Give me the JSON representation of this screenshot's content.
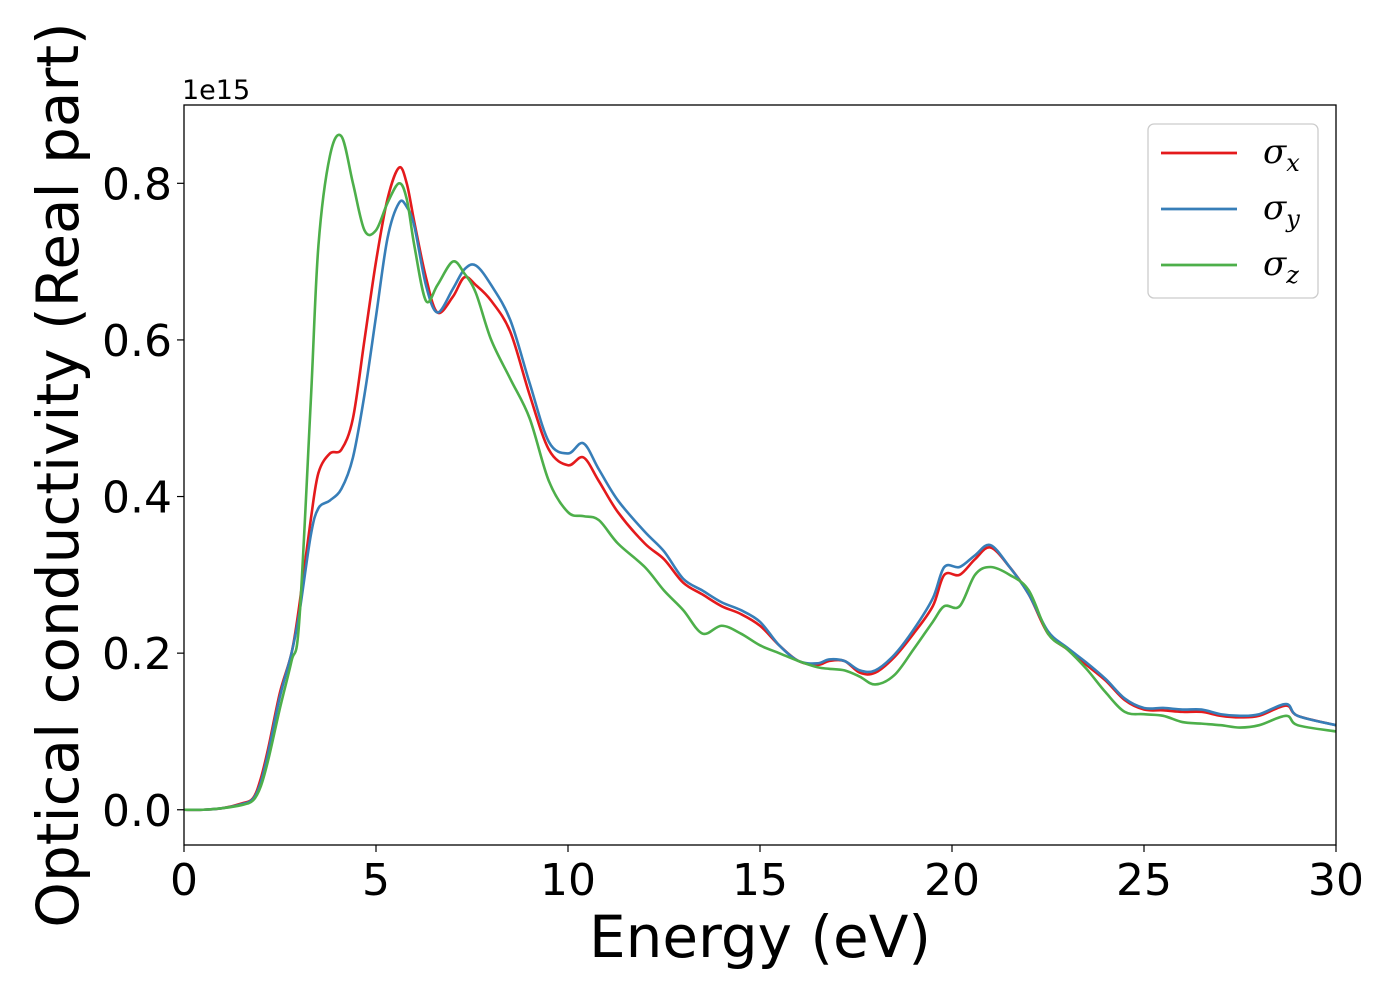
{
  "chart_data": {
    "type": "line",
    "title": "",
    "xlabel": "Energy (eV)",
    "ylabel": "Optical conductivity (Real part)",
    "y_offset_text": "1e15",
    "xlim": [
      0,
      30
    ],
    "ylim": [
      -0.045,
      0.9
    ],
    "xticks": [
      0,
      5,
      10,
      15,
      20,
      25,
      30
    ],
    "xtick_labels": [
      "0",
      "5",
      "10",
      "15",
      "20",
      "25",
      "30"
    ],
    "yticks": [
      0.0,
      0.2,
      0.4,
      0.6,
      0.8
    ],
    "ytick_labels": [
      "0.0",
      "0.2",
      "0.4",
      "0.6",
      "0.8"
    ],
    "grid": false,
    "legend_position": "top-right",
    "x": [
      0,
      0.5,
      1.0,
      1.5,
      1.8,
      2.0,
      2.2,
      2.5,
      2.8,
      3.0,
      3.3,
      3.5,
      3.8,
      4.1,
      4.4,
      4.7,
      5.0,
      5.3,
      5.6,
      5.8,
      6.0,
      6.3,
      6.6,
      7.0,
      7.3,
      7.6,
      8.0,
      8.5,
      9.0,
      9.5,
      10.0,
      10.4,
      10.8,
      11.3,
      12.0,
      12.5,
      13.0,
      13.5,
      14.0,
      14.5,
      15.0,
      15.5,
      16.0,
      16.5,
      16.8,
      17.2,
      17.6,
      18.0,
      18.5,
      19.0,
      19.5,
      19.8,
      20.2,
      20.6,
      21.0,
      21.5,
      22.0,
      22.5,
      23.0,
      23.5,
      24.0,
      24.5,
      25.0,
      25.5,
      26.0,
      26.5,
      27.0,
      27.5,
      28.0,
      28.7,
      29.0,
      30.0
    ],
    "series": [
      {
        "name": "σx",
        "color": "#e41a1c",
        "values": [
          0.0,
          0.0,
          0.002,
          0.008,
          0.015,
          0.04,
          0.08,
          0.15,
          0.2,
          0.26,
          0.37,
          0.43,
          0.455,
          0.46,
          0.5,
          0.6,
          0.7,
          0.78,
          0.82,
          0.8,
          0.75,
          0.68,
          0.635,
          0.655,
          0.68,
          0.67,
          0.65,
          0.61,
          0.53,
          0.46,
          0.44,
          0.45,
          0.42,
          0.38,
          0.34,
          0.32,
          0.29,
          0.275,
          0.26,
          0.25,
          0.235,
          0.21,
          0.19,
          0.185,
          0.19,
          0.19,
          0.175,
          0.175,
          0.195,
          0.225,
          0.26,
          0.3,
          0.3,
          0.32,
          0.335,
          0.31,
          0.275,
          0.225,
          0.205,
          0.185,
          0.165,
          0.14,
          0.128,
          0.127,
          0.125,
          0.125,
          0.12,
          0.118,
          0.12,
          0.133,
          0.12,
          0.108
        ]
      },
      {
        "name": "σy",
        "color": "#377eb8",
        "values": [
          0.0,
          0.0,
          0.002,
          0.007,
          0.014,
          0.035,
          0.075,
          0.145,
          0.2,
          0.25,
          0.35,
          0.385,
          0.395,
          0.41,
          0.45,
          0.53,
          0.63,
          0.73,
          0.775,
          0.77,
          0.745,
          0.67,
          0.635,
          0.665,
          0.69,
          0.695,
          0.67,
          0.625,
          0.545,
          0.47,
          0.455,
          0.468,
          0.435,
          0.395,
          0.355,
          0.33,
          0.295,
          0.28,
          0.265,
          0.255,
          0.24,
          0.21,
          0.19,
          0.187,
          0.192,
          0.19,
          0.178,
          0.178,
          0.198,
          0.23,
          0.27,
          0.31,
          0.31,
          0.325,
          0.338,
          0.31,
          0.275,
          0.228,
          0.207,
          0.188,
          0.167,
          0.142,
          0.13,
          0.13,
          0.128,
          0.128,
          0.122,
          0.12,
          0.122,
          0.135,
          0.12,
          0.108
        ]
      },
      {
        "name": "σz",
        "color": "#4daf4a",
        "values": [
          0.0,
          0.0,
          0.002,
          0.006,
          0.012,
          0.03,
          0.065,
          0.13,
          0.19,
          0.24,
          0.52,
          0.72,
          0.835,
          0.86,
          0.8,
          0.74,
          0.74,
          0.775,
          0.8,
          0.78,
          0.72,
          0.65,
          0.67,
          0.7,
          0.685,
          0.66,
          0.6,
          0.55,
          0.5,
          0.42,
          0.38,
          0.375,
          0.37,
          0.34,
          0.31,
          0.28,
          0.255,
          0.225,
          0.235,
          0.225,
          0.21,
          0.2,
          0.19,
          0.182,
          0.18,
          0.178,
          0.17,
          0.16,
          0.172,
          0.205,
          0.24,
          0.26,
          0.26,
          0.3,
          0.31,
          0.3,
          0.28,
          0.225,
          0.205,
          0.18,
          0.15,
          0.125,
          0.122,
          0.12,
          0.112,
          0.11,
          0.108,
          0.105,
          0.108,
          0.12,
          0.108,
          0.1
        ]
      }
    ]
  }
}
